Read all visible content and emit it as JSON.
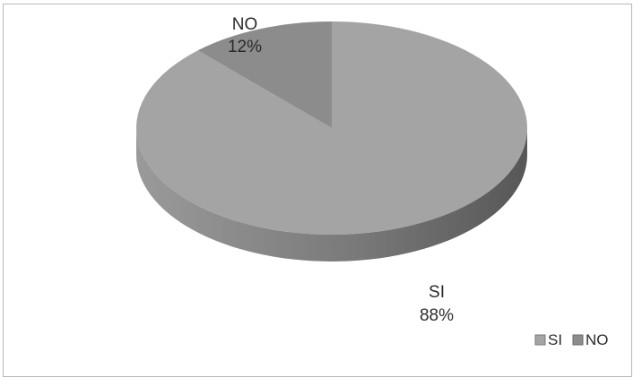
{
  "chart_data": {
    "type": "pie",
    "title": "",
    "categories": [
      "SI",
      "NO"
    ],
    "values": [
      88,
      12
    ],
    "value_labels": [
      "88%",
      "12%"
    ],
    "style": "3d",
    "legend_placement": "bottom-right",
    "colors": {
      "SI": "#a4a4a4",
      "NO": "#8c8c8c",
      "SI_side": "#7e7e7e",
      "NO_side": "#5e5e5e"
    }
  }
}
